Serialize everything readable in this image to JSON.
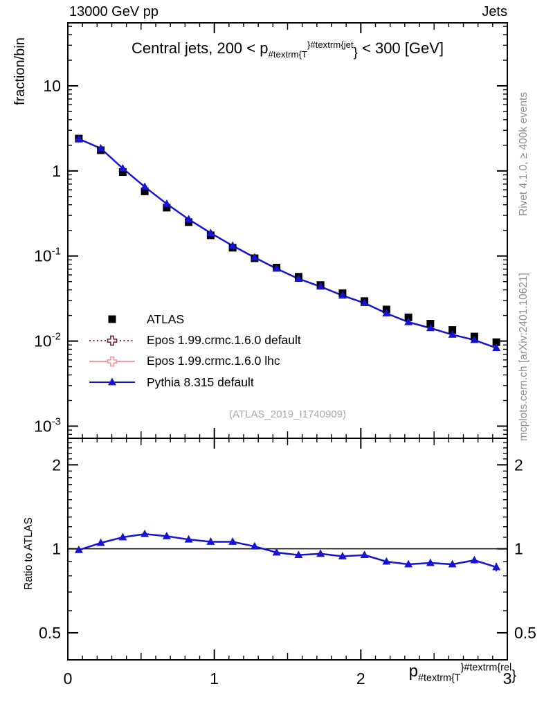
{
  "header": {
    "left": "13000 GeV pp",
    "right": "Jets"
  },
  "main_panel": {
    "title": {
      "pre": "Central jets, 200 < p",
      "sub": "#textrm{T",
      "sup": "}#textrm{jet",
      "brace": "}",
      "post": " < 300 [GeV]"
    },
    "ylabel": "fraction/bin",
    "watermark": "(ATLAS_2019_I1740909)"
  },
  "ratio_panel": {
    "ylabel": "Ratio to ATLAS"
  },
  "xaxis_label": {
    "pre": "p",
    "sub": "#textrm{T",
    "sup": "}#textrm{rel",
    "brace": "}"
  },
  "side_notes": {
    "top": "Rivet 4.1.0, ≥ 400k events",
    "bottom": "mcplots.cern.ch [arXiv:2401.10621]"
  },
  "legend": {
    "items": [
      {
        "label": "ATLAS",
        "marker": "square",
        "line": "none",
        "color": "#000000"
      },
      {
        "label": "Epos 1.99.crmc.1.6.0 default",
        "marker": "cross",
        "line": "dotted",
        "color": "#7e2845"
      },
      {
        "label": "Epos 1.99.crmc.1.6.0 lhc",
        "marker": "cross",
        "line": "solid",
        "color": "#f49c9c"
      },
      {
        "label": "Pythia 8.315 default",
        "marker": "triangle",
        "line": "solid",
        "color": "#1414d2"
      }
    ]
  },
  "colors": {
    "atlas": "#000000",
    "epos_default": "#7e2845",
    "epos_lhc": "#f49c9c",
    "pythia": "#1414d2",
    "gray_text": "#8e8e8e",
    "watermark": "#a9a9a9"
  },
  "chart_data": {
    "type": "line",
    "xlim": [
      0,
      3
    ],
    "x": [
      0.075,
      0.225,
      0.375,
      0.525,
      0.675,
      0.825,
      0.975,
      1.125,
      1.275,
      1.425,
      1.575,
      1.725,
      1.875,
      2.025,
      2.175,
      2.325,
      2.475,
      2.625,
      2.775,
      2.925
    ],
    "bin_width": 0.15,
    "xticks": [
      {
        "v": 0,
        "label": "0"
      },
      {
        "v": 1,
        "label": "1"
      },
      {
        "v": 2,
        "label": "2"
      },
      {
        "v": 3,
        "label": "3"
      }
    ],
    "x_minor_step": 0.1,
    "x_medium_step": 0.5,
    "main": {
      "yscale": "log",
      "ylabel": "fraction/bin",
      "ylim": [
        0.00072,
        55
      ],
      "yticks": [
        {
          "v": 10,
          "label": "10"
        },
        {
          "v": 1,
          "label": "1"
        },
        {
          "v": 0.1,
          "label": "10",
          "exp": "-1"
        },
        {
          "v": 0.01,
          "label": "10",
          "exp": "-2"
        },
        {
          "v": 0.001,
          "label": "10",
          "exp": "-3"
        }
      ],
      "series": [
        {
          "name": "ATLAS",
          "marker": "square",
          "color": "#000000",
          "values": [
            2.4,
            1.75,
            0.97,
            0.575,
            0.37,
            0.25,
            0.175,
            0.125,
            0.094,
            0.073,
            0.057,
            0.0455,
            0.0365,
            0.0295,
            0.0235,
            0.019,
            0.016,
            0.0135,
            0.0113,
            0.0097
          ],
          "err_rel": [
            0.02,
            0.02,
            0.02,
            0.02,
            0.02,
            0.02,
            0.02,
            0.025,
            0.025,
            0.03,
            0.03,
            0.035,
            0.04,
            0.045,
            0.05,
            0.055,
            0.06,
            0.07,
            0.08,
            0.09
          ]
        },
        {
          "name": "Epos 1.99.crmc.1.6.0 default",
          "marker": "cross",
          "color": "#7e2845",
          "values": []
        },
        {
          "name": "Epos 1.99.crmc.1.6.0 lhc",
          "marker": "cross",
          "color": "#f49c9c",
          "values": []
        },
        {
          "name": "Pythia 8.315 default",
          "marker": "triangle",
          "color": "#1414d2",
          "values": [
            2.38,
            1.84,
            1.07,
            0.65,
            0.41,
            0.27,
            0.186,
            0.132,
            0.096,
            0.071,
            0.054,
            0.0437,
            0.0343,
            0.028,
            0.0212,
            0.0167,
            0.0142,
            0.0119,
            0.0103,
            0.0083
          ]
        }
      ]
    },
    "ratio": {
      "yscale": "log",
      "ylabel": "Ratio to ATLAS",
      "ylim": [
        0.4,
        2.49
      ],
      "reference": 1,
      "yticks": [
        {
          "v": 2,
          "label": "2"
        },
        {
          "v": 1,
          "label": "1"
        },
        {
          "v": 0.5,
          "label": "0.5"
        }
      ],
      "series": [
        {
          "name": "Pythia 8.315 default",
          "marker": "triangle",
          "color": "#1414d2",
          "values": [
            0.99,
            1.05,
            1.1,
            1.13,
            1.11,
            1.08,
            1.06,
            1.06,
            1.02,
            0.97,
            0.95,
            0.96,
            0.94,
            0.95,
            0.9,
            0.88,
            0.89,
            0.88,
            0.91,
            0.86
          ],
          "err": [
            0.006,
            0.005,
            0.005,
            0.005,
            0.005,
            0.005,
            0.006,
            0.006,
            0.007,
            0.007,
            0.008,
            0.009,
            0.01,
            0.011,
            0.012,
            0.014,
            0.016,
            0.019,
            0.024,
            0.03
          ]
        }
      ]
    }
  }
}
